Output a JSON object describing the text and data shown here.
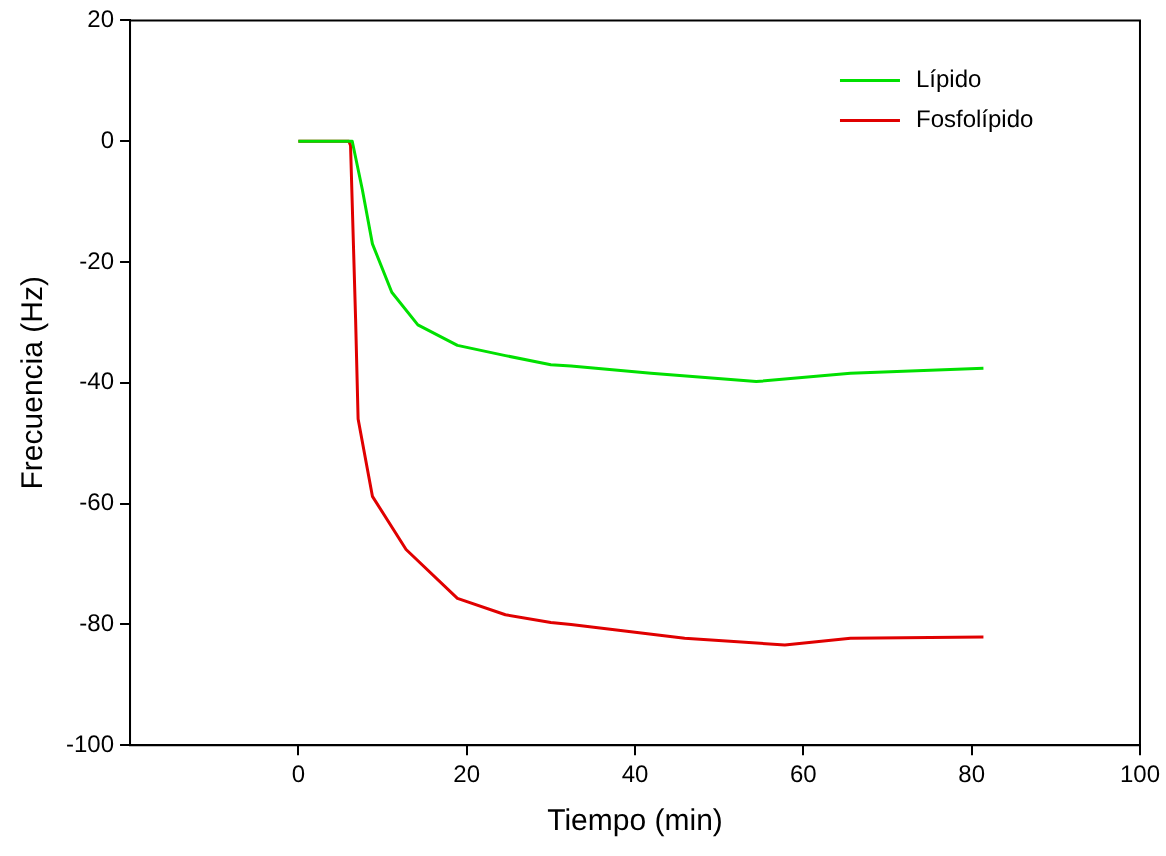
{
  "chart_data": {
    "type": "line",
    "xlabel": "Tiempo (min)",
    "ylabel": "Frecuencia (Hz)",
    "xlim": [
      -20,
      100
    ],
    "xticks": [
      0,
      20,
      40,
      60,
      80,
      100
    ],
    "ylim": [
      -100,
      20
    ],
    "yticks": [
      -100,
      -80,
      -60,
      -40,
      -20,
      0,
      20
    ],
    "grid": false,
    "legend": "top right",
    "marker": "none",
    "line_style": "solid",
    "series": [
      {
        "name": "Lípido",
        "color": "#00e000",
        "x": [
          0,
          3,
          6.4,
          7.6,
          8.8,
          11.1,
          14.2,
          18.9,
          24.6,
          30,
          32.4,
          41.9,
          54.4,
          65.6,
          81.4
        ],
        "values": [
          0,
          0,
          0,
          -8,
          -17,
          -25,
          -30.4,
          -33.8,
          -35.5,
          -37,
          -37.2,
          -38.4,
          -39.8,
          -38.4,
          -37.6
        ]
      },
      {
        "name": "Fosfolípido",
        "color": "#e00000",
        "x": [
          0,
          3,
          6,
          6.2,
          6.8,
          7.1,
          8.8,
          12.8,
          18.9,
          24.6,
          30,
          32.4,
          45.9,
          57.8,
          65.6,
          81.4
        ],
        "values": [
          0,
          0,
          0,
          -0.7,
          -29.4,
          -46,
          -58.8,
          -67.6,
          -75.7,
          -78.4,
          -79.7,
          -80,
          -82.3,
          -83.4,
          -82.3,
          -82.1
        ]
      }
    ]
  }
}
